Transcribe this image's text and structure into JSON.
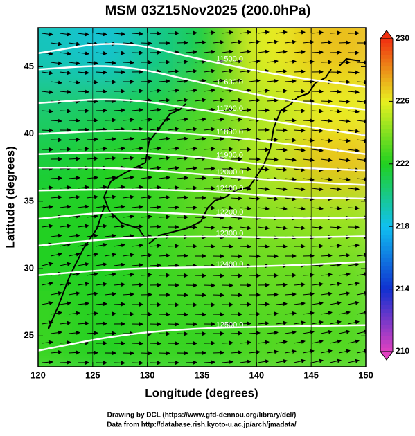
{
  "chart_data": {
    "type": "map",
    "title": "MSM 03Z15Nov2025 (200.0hPa)",
    "x_label": "Longitude (degrees)",
    "y_label": "Latitude  (degrees)",
    "xlim": [
      120,
      150
    ],
    "ylim": [
      22.7,
      47.9
    ],
    "xticks": [
      120,
      125,
      130,
      135,
      140,
      145,
      150
    ],
    "yticks": [
      25,
      30,
      35,
      40,
      45
    ],
    "field": {
      "lon": [
        121,
        126,
        131,
        136,
        141,
        146
      ],
      "lat": [
        46,
        42,
        38,
        34,
        30,
        26
      ],
      "values": [
        [
          219,
          218.5,
          220,
          222,
          226,
          227
        ],
        [
          220.5,
          221,
          221.5,
          223,
          225,
          226
        ],
        [
          221.5,
          222,
          222.5,
          223.5,
          225,
          227
        ],
        [
          222,
          222,
          222.5,
          223.5,
          224,
          224.5
        ],
        [
          222,
          222,
          222.5,
          223,
          223.5,
          223.5
        ],
        [
          222.5,
          222,
          222.5,
          222.5,
          223,
          223
        ]
      ]
    },
    "colorbar": {
      "lim": [
        210,
        230
      ],
      "ticks": [
        210,
        214,
        218,
        222,
        226,
        230
      ],
      "colors": [
        "#e040c0",
        "#1030d0",
        "#10c0f0",
        "#20d020",
        "#e8f020",
        "#f03010"
      ]
    },
    "contour_lon": [
      120,
      127.5,
      135,
      142.5,
      150
    ],
    "contours": [
      {
        "level": 11500,
        "label": "11500.0",
        "lat": [
          46.0,
          47.0,
          45.5,
          44.3,
          43.5
        ]
      },
      {
        "level": 11600,
        "label": "11600.0",
        "lat": [
          44.8,
          45.2,
          43.8,
          42.5,
          41.8
        ]
      },
      {
        "level": 11700,
        "label": "11700.0",
        "lat": [
          42.3,
          42.7,
          41.8,
          40.8,
          39.9
        ]
      },
      {
        "level": 11800,
        "label": "11800.0",
        "lat": [
          40.0,
          40.3,
          40.0,
          39.3,
          38.5
        ]
      },
      {
        "level": 11900,
        "label": "11900.0",
        "lat": [
          38.5,
          38.7,
          38.3,
          37.5,
          37.3
        ]
      },
      {
        "level": 12000,
        "label": "12000.0",
        "lat": [
          37.5,
          37.5,
          37.0,
          36.5,
          36.2
        ]
      },
      {
        "level": 12100,
        "label": "12100.0",
        "lat": [
          35.8,
          35.9,
          35.8,
          35.3,
          35.2
        ]
      },
      {
        "level": 12200,
        "label": "12200.0",
        "lat": [
          33.7,
          34.3,
          34.0,
          33.7,
          33.8
        ]
      },
      {
        "level": 12300,
        "label": "12300.0",
        "lat": [
          31.7,
          32.3,
          32.4,
          32.3,
          32.4
        ]
      },
      {
        "level": 12400,
        "label": "12400.0",
        "lat": [
          29.5,
          30.0,
          30.1,
          30.2,
          30.5
        ]
      },
      {
        "level": 12500,
        "label": "12500.0",
        "lat": [
          23.9,
          25.1,
          25.6,
          25.7,
          25.8
        ]
      }
    ],
    "footer": [
      "Drawing by DCL (https://www.gfd-dennou.org/library/dcl/)",
      "Data from http://database.rish.kyoto-u.ac.jp/arch/jmadata/"
    ]
  }
}
